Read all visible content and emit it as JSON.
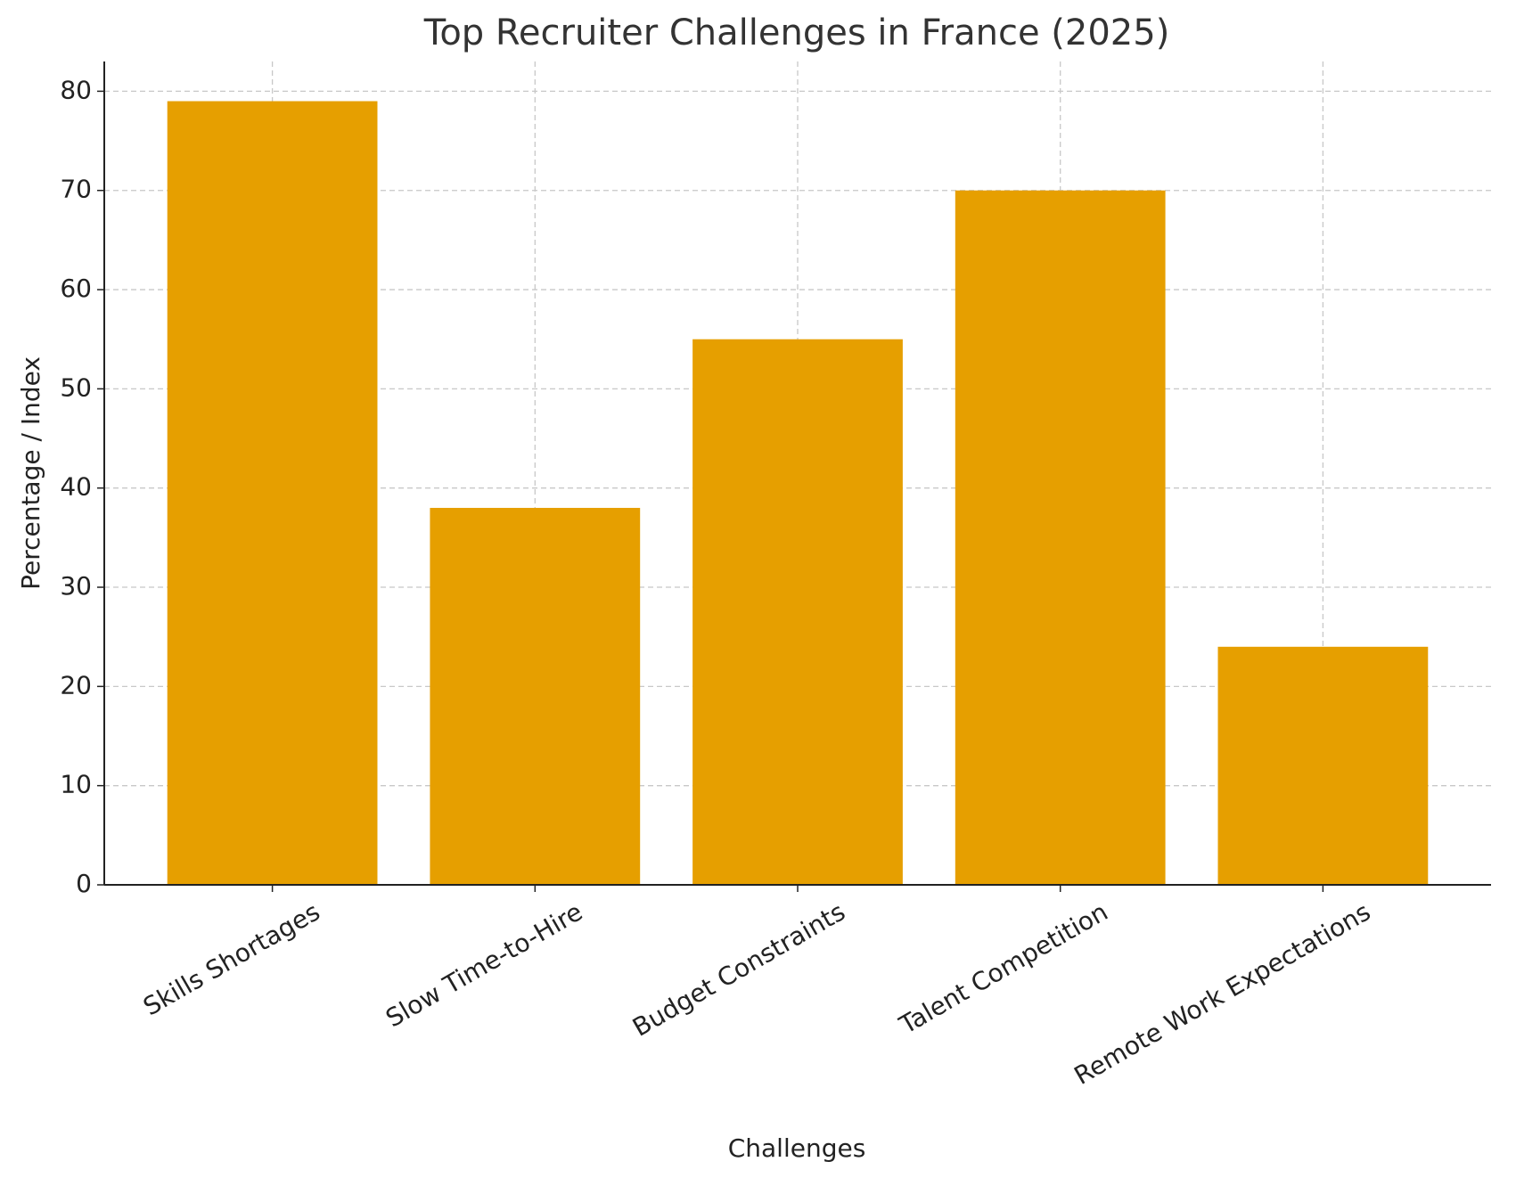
{
  "chart_data": {
    "type": "bar",
    "title": "Top Recruiter Challenges in France (2025)",
    "x_label": "Challenges",
    "y_label": "Percentage / Index",
    "categories": [
      "Skills Shortages",
      "Slow Time-to-Hire",
      "Budget Constraints",
      "Talent Competition",
      "Remote Work Expectations"
    ],
    "values": [
      79,
      38,
      55,
      70,
      24
    ],
    "color": "#e69f00",
    "ylim": [
      0,
      83
    ],
    "yticks": [
      0,
      10,
      20,
      30,
      40,
      50,
      60,
      70,
      80
    ],
    "grid": true
  }
}
